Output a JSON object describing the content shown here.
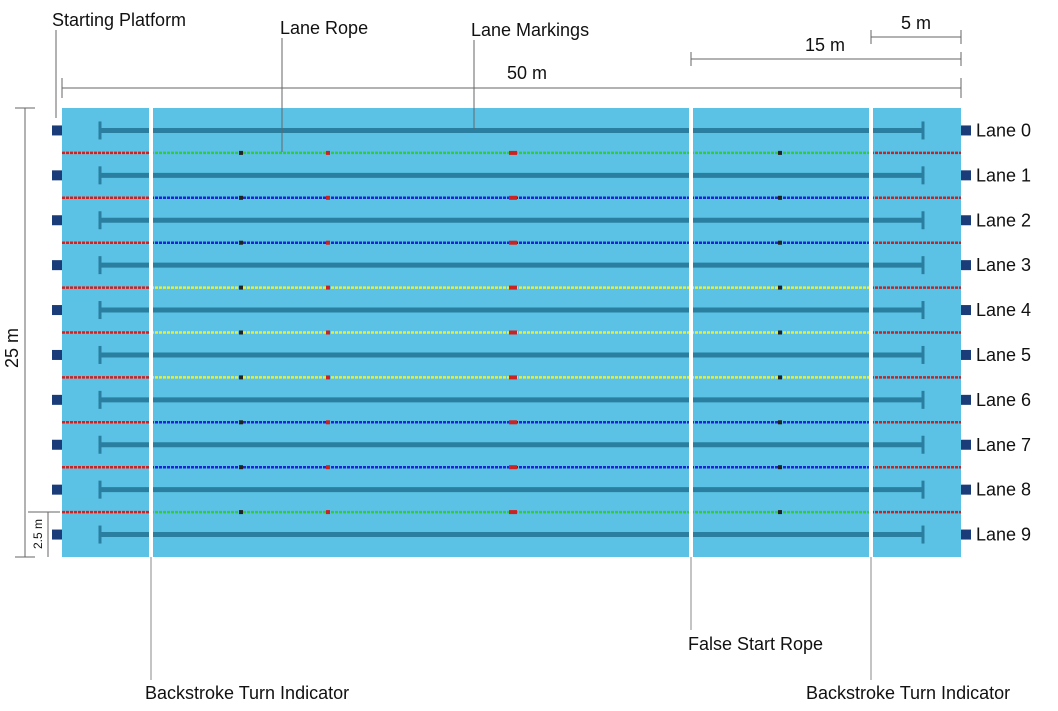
{
  "labels": {
    "starting_platform": "Starting Platform",
    "lane_rope": "Lane Rope",
    "lane_markings": "Lane Markings",
    "false_start_rope": "False Start Rope",
    "backstroke_left": "Backstroke Turn Indicator",
    "backstroke_right": "Backstroke Turn Indicator"
  },
  "dimensions": {
    "length": "50 m",
    "width": "25 m",
    "false_start": "15 m",
    "backstroke": "5 m",
    "lane_width": "2.5 m"
  },
  "lanes": [
    "Lane 0",
    "Lane 1",
    "Lane 2",
    "Lane 3",
    "Lane 4",
    "Lane 5",
    "Lane 6",
    "Lane 7",
    "Lane 8",
    "Lane 9"
  ],
  "rope_colors": [
    "#33cc33",
    "#2222dd",
    "#2222dd",
    "#eeee22",
    "#eeee22",
    "#eeee22",
    "#2222dd",
    "#2222dd",
    "#33cc33"
  ],
  "colors": {
    "water": "#5bc2e5",
    "lane_marking": "#2a7fa0",
    "platform": "#1a3d7a",
    "rope_end": "#cc2222",
    "indicator": "#ffffff"
  }
}
